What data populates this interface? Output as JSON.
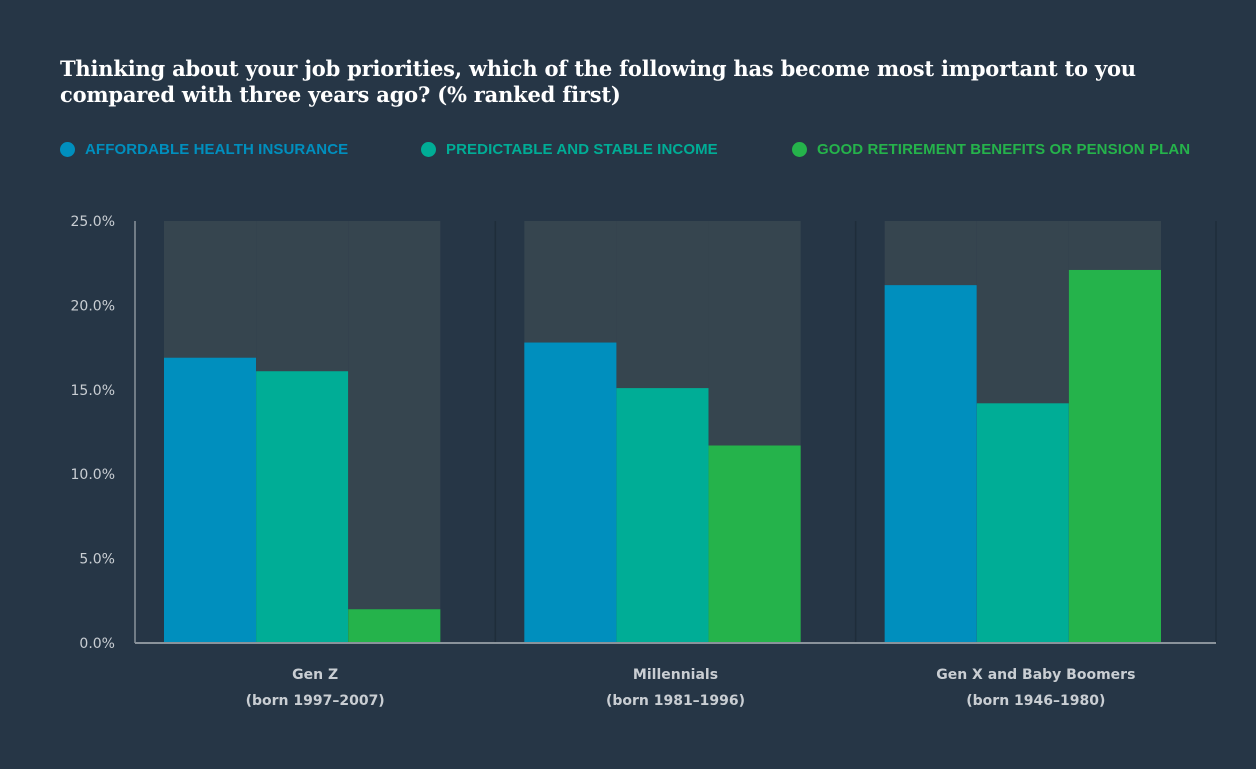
{
  "chart_data": {
    "type": "bar",
    "title": "Thinking about your job priorities, which of the following has become most important to you compared with three years ago? (% ranked first)",
    "categories": [
      {
        "name": "Gen Z",
        "sub": "(born 1997–2007)"
      },
      {
        "name": "Millennials",
        "sub": "(born 1981–1996)"
      },
      {
        "name": "Gen X and Baby Boomers",
        "sub": "(born 1946–1980)"
      }
    ],
    "series": [
      {
        "name": "AFFORDABLE HEALTH INSURANCE",
        "color": "#008fbe",
        "values": [
          16.9,
          17.8,
          21.2
        ]
      },
      {
        "name": "PREDICTABLE AND STABLE INCOME",
        "color": "#00ad96",
        "values": [
          16.1,
          15.1,
          14.2
        ]
      },
      {
        "name": "GOOD RETIREMENT BENEFITS OR PENSION PLAN",
        "color": "#25b34b",
        "values": [
          2.0,
          11.7,
          22.1
        ]
      }
    ],
    "ylim": [
      0,
      25
    ],
    "yticks": [
      "0.0%",
      "5.0%",
      "10.0%",
      "15.0%",
      "20.0%",
      "25.0%"
    ],
    "ytick_values": [
      0,
      5,
      10,
      15,
      20,
      25
    ],
    "xlabel": "",
    "ylabel": "",
    "grid": false,
    "legend_position": "top"
  },
  "colors": {
    "background": "#263646",
    "bar_background": "#36454f",
    "axis": "#8a939b",
    "label": "#c9ced3"
  }
}
